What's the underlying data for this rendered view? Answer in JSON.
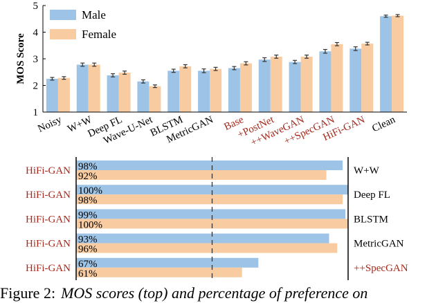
{
  "colors": {
    "male": "#9dc3e6",
    "female": "#f8cba0",
    "highlight": "#a5291c",
    "text": "#000000"
  },
  "chart_data": [
    {
      "type": "bar",
      "title": "",
      "xlabel": "",
      "ylabel": "MOS Score",
      "ylim": [
        1,
        5
      ],
      "yticks": [
        1,
        2,
        3,
        4,
        5
      ],
      "grid": false,
      "legend_position": "top-left",
      "categories": [
        "Noisy",
        "W+W",
        "Deep FL",
        "Wave-U-Net",
        "BLSTM",
        "MetricGAN",
        "Base",
        "+PostNet",
        "++WaveGAN",
        "++SpecGAN",
        "HiFi-GAN",
        "Clean"
      ],
      "highlighted_categories": [
        "Base",
        "+PostNet",
        "++WaveGAN",
        "++SpecGAN",
        "HiFi-GAN"
      ],
      "series": [
        {
          "name": "Male",
          "values": [
            2.25,
            2.78,
            2.38,
            2.15,
            2.55,
            2.55,
            2.65,
            2.97,
            2.88,
            3.28,
            3.38,
            4.6
          ],
          "errors": [
            0.05,
            0.06,
            0.06,
            0.06,
            0.06,
            0.07,
            0.06,
            0.07,
            0.06,
            0.07,
            0.07,
            0.04
          ]
        },
        {
          "name": "Female",
          "values": [
            2.28,
            2.78,
            2.48,
            1.97,
            2.72,
            2.62,
            2.83,
            3.08,
            3.08,
            3.55,
            3.57,
            4.62
          ],
          "errors": [
            0.05,
            0.06,
            0.06,
            0.05,
            0.06,
            0.06,
            0.06,
            0.06,
            0.06,
            0.06,
            0.05,
            0.04
          ]
        }
      ]
    },
    {
      "type": "bar",
      "orientation": "horizontal",
      "title": "",
      "xlim": [
        0,
        100
      ],
      "reference_line": 50,
      "left_labels": [
        "HiFi-GAN",
        "HiFi-GAN",
        "HiFi-GAN",
        "HiFi-GAN",
        "HiFi-GAN"
      ],
      "right_labels": [
        "W+W",
        "Deep FL",
        "BLSTM",
        "MetricGAN",
        "++SpecGAN"
      ],
      "right_highlighted": [
        "++SpecGAN"
      ],
      "series": [
        {
          "name": "Male",
          "values": [
            98,
            100,
            99,
            93,
            67
          ]
        },
        {
          "name": "Female",
          "values": [
            92,
            98,
            100,
            96,
            61
          ]
        }
      ]
    }
  ],
  "caption": {
    "number": "Figure 2:",
    "text": "MOS scores (top) and percentage of preference on"
  }
}
